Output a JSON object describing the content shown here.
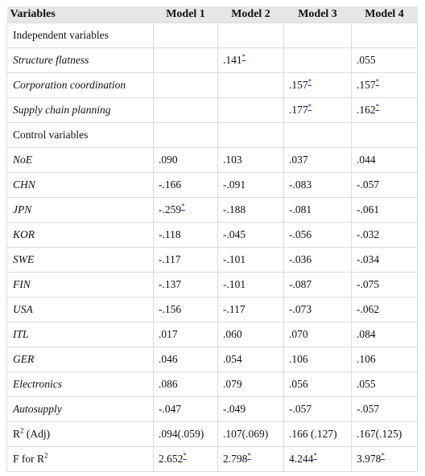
{
  "table": {
    "header": [
      "Variables",
      "Model 1",
      "Model 2",
      "Model 3",
      "Model 4"
    ],
    "rows": [
      {
        "label": "Independent variables",
        "italic": false,
        "cells": [
          null,
          null,
          null,
          null
        ]
      },
      {
        "label": "Structure flatness",
        "italic": true,
        "cells": [
          null,
          {
            "value": ".141",
            "note": "*"
          },
          null,
          ".055"
        ]
      },
      {
        "label": "Corporation coordination",
        "italic": true,
        "cells": [
          null,
          null,
          {
            "value": ".157",
            "note": "*"
          },
          {
            "value": ".157",
            "note": "*"
          }
        ]
      },
      {
        "label": "Supply chain planning",
        "italic": true,
        "cells": [
          null,
          null,
          {
            "value": ".177",
            "note": "*"
          },
          {
            "value": ".162",
            "note": "*"
          }
        ]
      },
      {
        "label": "Control variables",
        "italic": false,
        "cells": [
          null,
          null,
          null,
          null
        ]
      },
      {
        "label": "NoE",
        "italic": true,
        "cells": [
          ".090",
          ".103",
          ".037",
          ".044"
        ]
      },
      {
        "label": "CHN",
        "italic": true,
        "cells": [
          "-.166",
          "-.091",
          "-.083",
          "-.057"
        ]
      },
      {
        "label": "JPN",
        "italic": true,
        "cells": [
          {
            "value": "-.259",
            "note": "*"
          },
          "-.188",
          "-.081",
          "-.061"
        ]
      },
      {
        "label": "KOR",
        "italic": true,
        "cells": [
          "-.118",
          "-.045",
          "-.056",
          "-.032"
        ]
      },
      {
        "label": "SWE",
        "italic": true,
        "cells": [
          "-.117",
          "-.101",
          "-.036",
          "-.034"
        ]
      },
      {
        "label": "FIN",
        "italic": true,
        "cells": [
          "-.137",
          "-.101",
          "-.087",
          "-.075"
        ]
      },
      {
        "label": "USA",
        "italic": true,
        "cells": [
          "-.156",
          "-.117",
          "-.073",
          "-.062"
        ]
      },
      {
        "label": "ITL",
        "italic": true,
        "cells": [
          ".017",
          ".060",
          ".070",
          ".084"
        ]
      },
      {
        "label": "GER",
        "italic": true,
        "cells": [
          ".046",
          ".054",
          ".106",
          ".106"
        ]
      },
      {
        "label": "Electronics",
        "italic": true,
        "cells": [
          ".086",
          ".079",
          ".056",
          ".055"
        ]
      },
      {
        "label": "Autosupply",
        "italic": true,
        "cells": [
          "-.047",
          "-.049",
          "-.057",
          "-.057"
        ]
      },
      {
        "label": {
          "base": "R",
          "sup": "2",
          "tail": " (Adj)"
        },
        "italic": false,
        "cells": [
          ".094(.059)",
          ".107(.069)",
          ".166 (.127)",
          ".167(.125)"
        ]
      },
      {
        "label": {
          "base": "F for R",
          "sup": "2"
        },
        "italic": false,
        "cells": [
          {
            "value": "2.652",
            "note": "*"
          },
          {
            "value": "2.798",
            "note": "*"
          },
          {
            "value": "4.244",
            "note": "*"
          },
          {
            "value": "3.978",
            "note": "*"
          }
        ]
      }
    ]
  }
}
